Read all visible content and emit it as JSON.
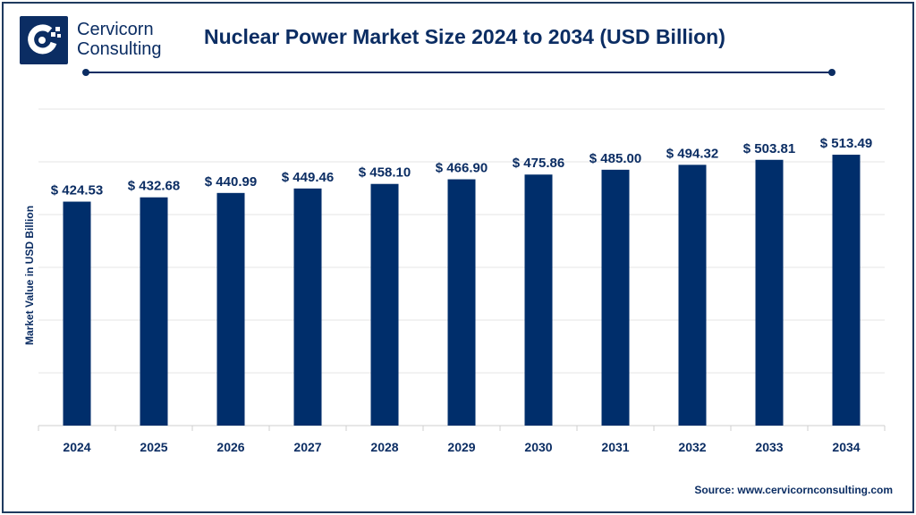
{
  "brand": {
    "name_line1": "Cervicorn",
    "name_line2": "Consulting"
  },
  "source": "Source: www.cervicornconsulting.com",
  "colors": {
    "bar": "#002e6b",
    "text": "#0b2d63",
    "grid": "#e6e6e6"
  },
  "chart_data": {
    "type": "bar",
    "title": "Nuclear Power Market Size 2024 to 2034 (USD Billion)",
    "xlabel": "",
    "ylabel": "Market Value in USD Billion",
    "categories": [
      "2024",
      "2025",
      "2026",
      "2027",
      "2028",
      "2029",
      "2030",
      "2031",
      "2032",
      "2033",
      "2034"
    ],
    "values": [
      424.53,
      432.68,
      440.99,
      449.46,
      458.1,
      466.9,
      475.86,
      485.0,
      494.32,
      503.81,
      513.49
    ],
    "data_labels": [
      "$ 424.53",
      "$ 432.68",
      "$ 440.99",
      "$ 449.46",
      "$ 458.10",
      "$ 466.90",
      "$ 475.86",
      "$ 485.00",
      "$ 494.32",
      "$ 503.81",
      "$ 513.49"
    ],
    "ylim": [
      0,
      600
    ],
    "grid": true,
    "y_tick_labels_shown": false
  }
}
